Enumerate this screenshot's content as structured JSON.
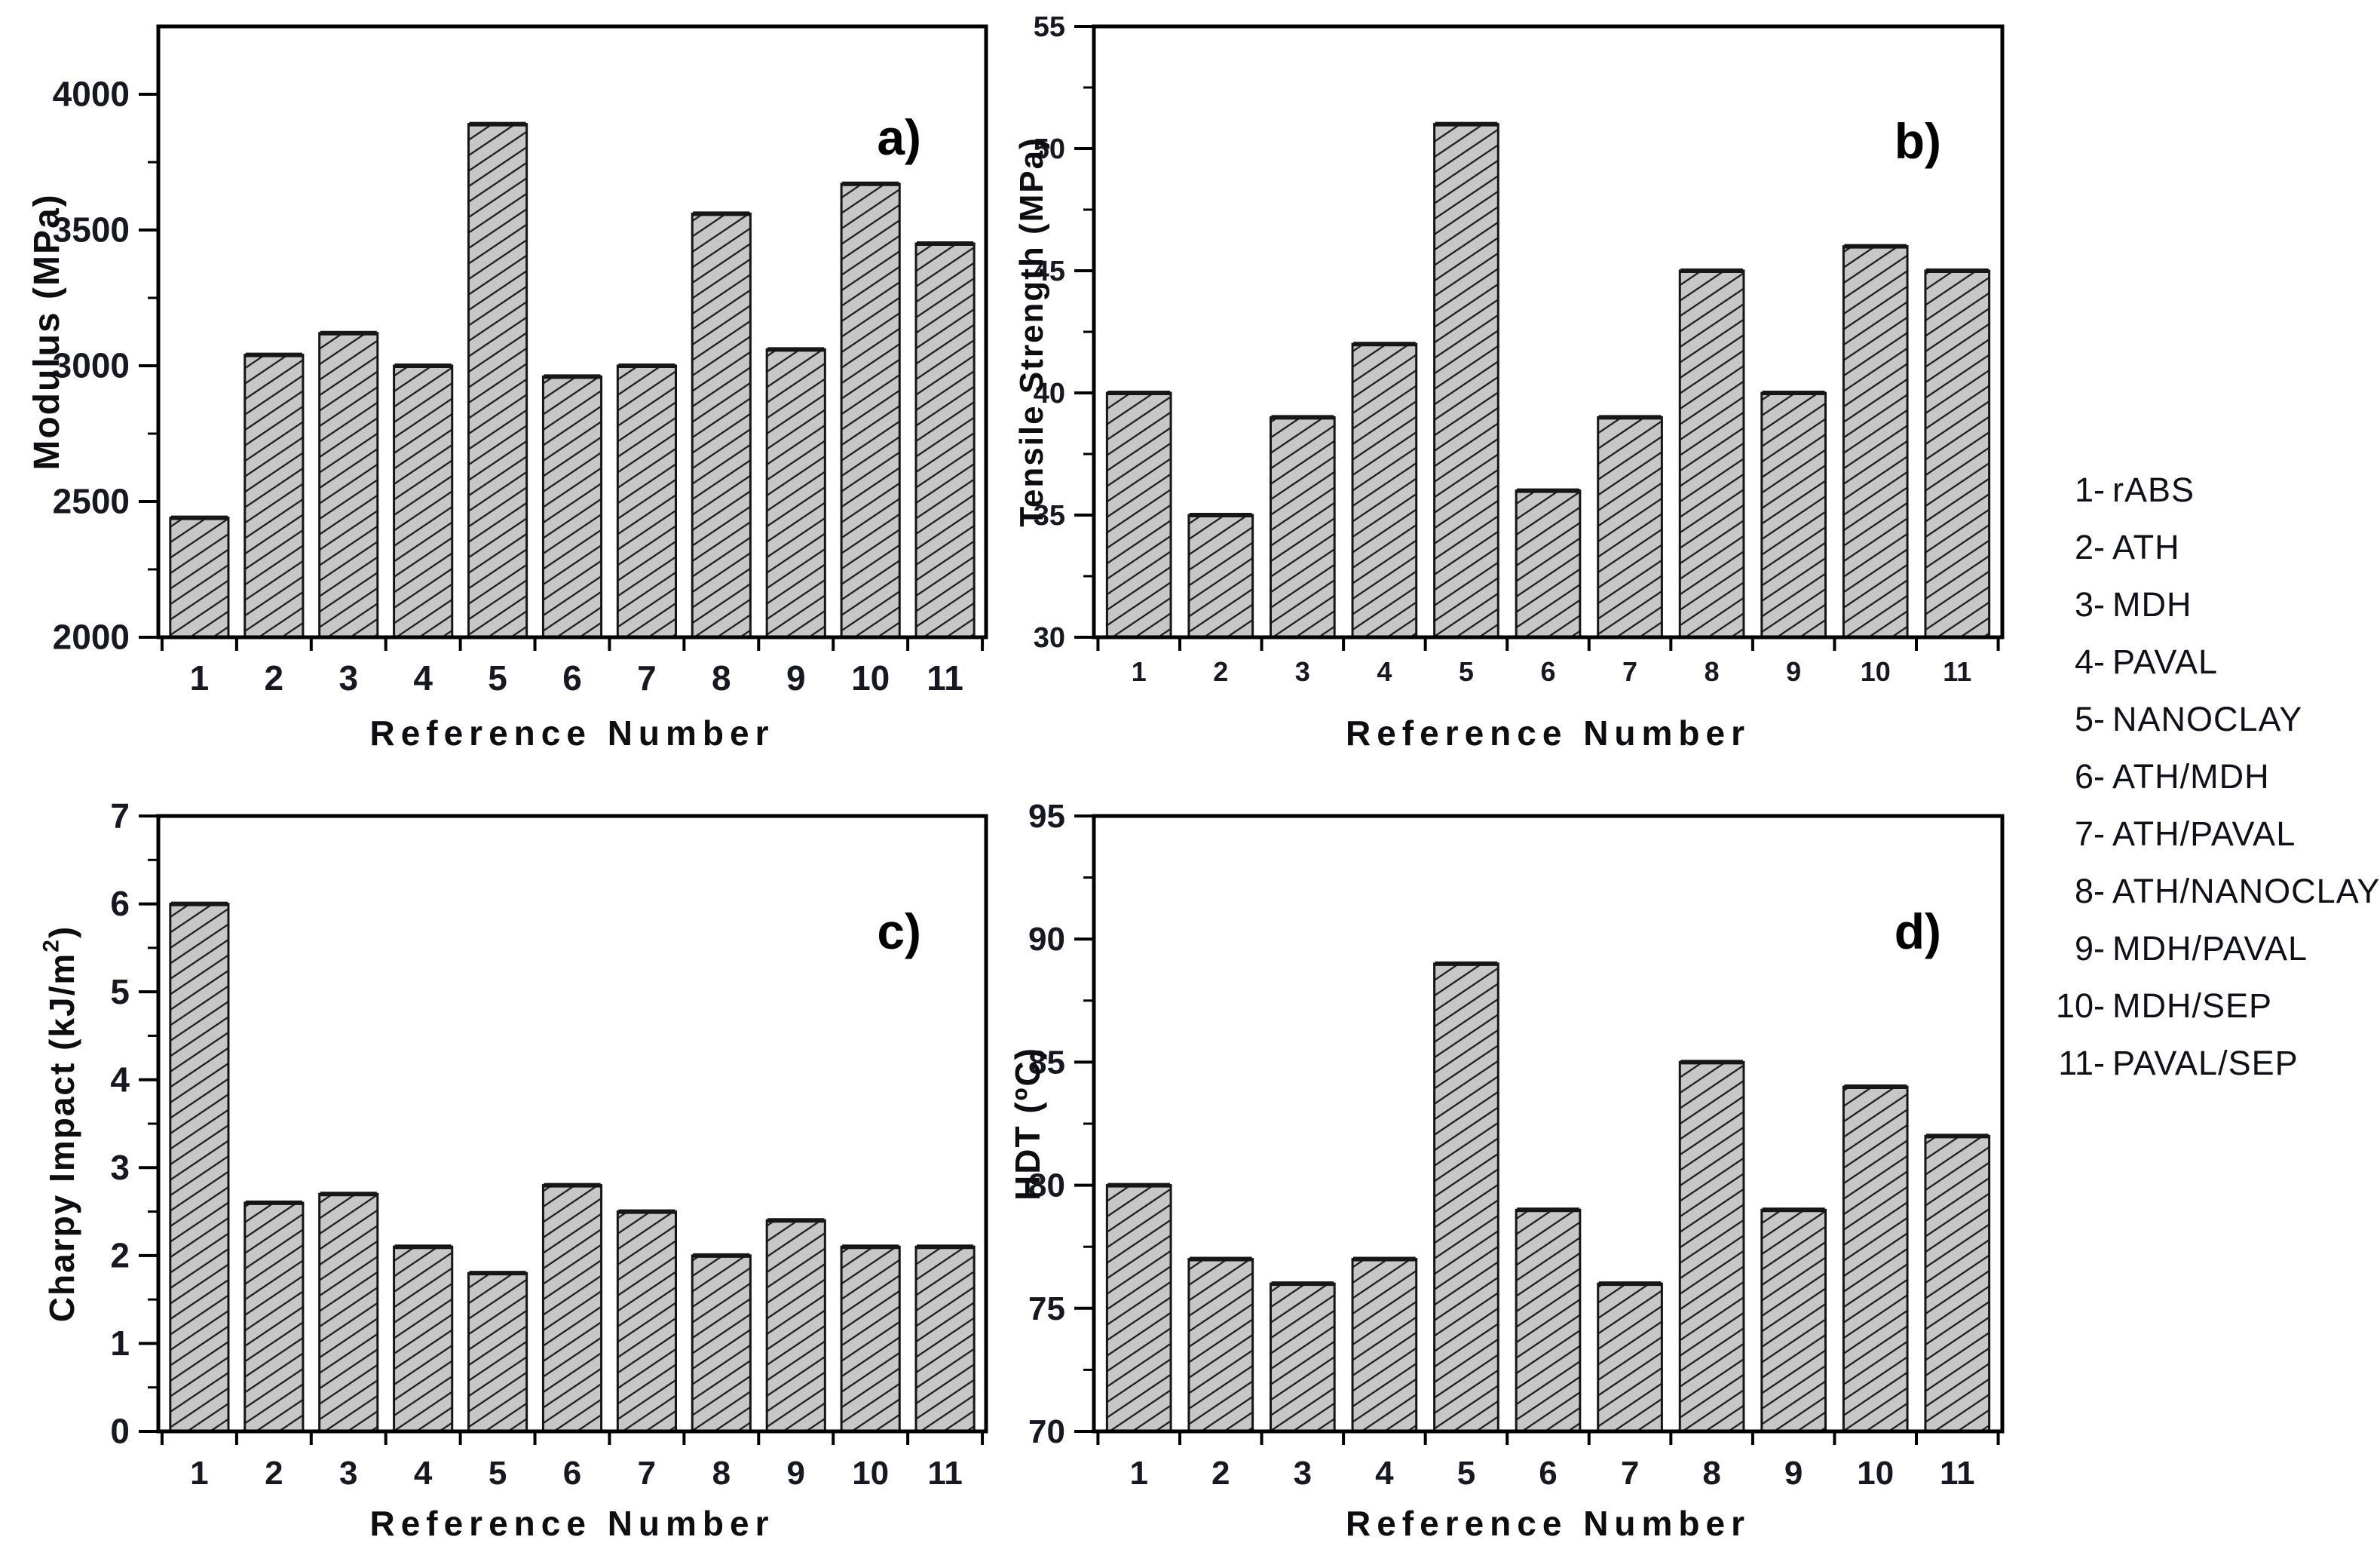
{
  "figure": {
    "xlabel": "Reference Number",
    "panels": [
      {
        "letter": "a)",
        "ylabel": "Modulus (MPa)"
      },
      {
        "letter": "b)",
        "ylabel": "Tensile Strength (MPa)"
      },
      {
        "letter": "c)",
        "ylabel": "Charpy Impact (kJ/m²)"
      },
      {
        "letter": "d)",
        "ylabel": "HDT (ºC)"
      }
    ]
  },
  "chart_data": [
    {
      "type": "bar",
      "panel_letter": "a)",
      "title": "",
      "xlabel": "Reference Number",
      "ylabel": "Modulus (MPa)",
      "categories": [
        "1",
        "2",
        "3",
        "4",
        "5",
        "6",
        "7",
        "8",
        "9",
        "10",
        "11"
      ],
      "values": [
        2440,
        3040,
        3120,
        3000,
        3890,
        2960,
        3000,
        3560,
        3060,
        3670,
        3450
      ],
      "ylim": [
        2000,
        4250
      ],
      "ytick_major": 500,
      "ytick_minor": 250,
      "grid": false
    },
    {
      "type": "bar",
      "panel_letter": "b)",
      "title": "",
      "xlabel": "Reference Number",
      "ylabel": "Tensile Strength (MPa)",
      "categories": [
        "1",
        "2",
        "3",
        "4",
        "5",
        "6",
        "7",
        "8",
        "9",
        "10",
        "11"
      ],
      "values": [
        40,
        35,
        39,
        42,
        51,
        36,
        39,
        45,
        40,
        46,
        45
      ],
      "ylim": [
        30,
        55
      ],
      "ytick_major": 5,
      "ytick_minor": 2.5,
      "grid": false
    },
    {
      "type": "bar",
      "panel_letter": "c)",
      "title": "",
      "xlabel": "Reference Number",
      "ylabel": "Charpy Impact (kJ/m²)",
      "categories": [
        "1",
        "2",
        "3",
        "4",
        "5",
        "6",
        "7",
        "8",
        "9",
        "10",
        "11"
      ],
      "values": [
        6.0,
        2.6,
        2.7,
        2.1,
        1.8,
        2.8,
        2.5,
        2.0,
        2.4,
        2.1,
        2.1
      ],
      "ylim": [
        0,
        7
      ],
      "ytick_major": 1,
      "ytick_minor": 0.5,
      "grid": false
    },
    {
      "type": "bar",
      "panel_letter": "d)",
      "title": "",
      "xlabel": "Reference Number",
      "ylabel": "HDT (ºC)",
      "categories": [
        "1",
        "2",
        "3",
        "4",
        "5",
        "6",
        "7",
        "8",
        "9",
        "10",
        "11"
      ],
      "values": [
        80,
        77,
        76,
        77,
        89,
        79,
        76,
        85,
        79,
        84,
        82
      ],
      "ylim": [
        70,
        95
      ],
      "ytick_major": 5,
      "ytick_minor": 2.5,
      "grid": false
    }
  ],
  "legend": {
    "items": [
      {
        "num": "1-",
        "label": "rABS"
      },
      {
        "num": "2-",
        "label": "ATH"
      },
      {
        "num": "3-",
        "label": "MDH"
      },
      {
        "num": "4-",
        "label": "PAVAL"
      },
      {
        "num": "5-",
        "label": "NANOCLAY"
      },
      {
        "num": "6-",
        "label": "ATH/MDH"
      },
      {
        "num": "7-",
        "label": "ATH/PAVAL"
      },
      {
        "num": "8-",
        "label": "ATH/NANOCLAY"
      },
      {
        "num": "9-",
        "label": "MDH/PAVAL"
      },
      {
        "num": "10-",
        "label": "MDH/SEP"
      },
      {
        "num": "11-",
        "label": "PAVAL/SEP"
      }
    ]
  },
  "colors": {
    "background": "#ffffff",
    "bar_fill": "#c7c7c7",
    "bar_edge": "#161616",
    "hatch_line": "#1b1b1b",
    "axis": "#000000",
    "tick_text": "#181822",
    "label_text": "#0d0d12",
    "legend_text": "#10101a"
  }
}
